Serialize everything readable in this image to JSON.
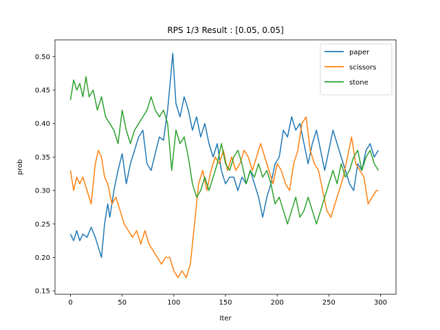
{
  "chart_data": {
    "type": "line",
    "title": "RPS 1/3 Result : [0.05, 0.05]",
    "xlabel": "Iter",
    "ylabel": "prob",
    "xlim": [
      -15,
      315
    ],
    "ylim": [
      0.145,
      0.525
    ],
    "xticks": [
      0,
      50,
      100,
      150,
      200,
      250,
      300
    ],
    "yticks": [
      0.15,
      0.2,
      0.25,
      0.3,
      0.35,
      0.4,
      0.45,
      0.5
    ],
    "ytick_labels": [
      "0.15",
      "0.20",
      "0.25",
      "0.30",
      "0.35",
      "0.40",
      "0.45",
      "0.50"
    ],
    "legend_position": "top-right",
    "grid": false,
    "series": [
      {
        "name": "paper",
        "color": "#1f77b4",
        "points": [
          [
            0,
            0.235
          ],
          [
            3,
            0.225
          ],
          [
            6,
            0.24
          ],
          [
            9,
            0.225
          ],
          [
            12,
            0.235
          ],
          [
            16,
            0.23
          ],
          [
            20,
            0.245
          ],
          [
            24,
            0.23
          ],
          [
            28,
            0.21
          ],
          [
            30,
            0.2
          ],
          [
            33,
            0.25
          ],
          [
            36,
            0.28
          ],
          [
            38,
            0.26
          ],
          [
            42,
            0.3
          ],
          [
            46,
            0.33
          ],
          [
            50,
            0.355
          ],
          [
            54,
            0.31
          ],
          [
            58,
            0.34
          ],
          [
            62,
            0.36
          ],
          [
            66,
            0.38
          ],
          [
            70,
            0.39
          ],
          [
            74,
            0.34
          ],
          [
            78,
            0.33
          ],
          [
            82,
            0.355
          ],
          [
            86,
            0.38
          ],
          [
            90,
            0.375
          ],
          [
            94,
            0.42
          ],
          [
            97,
            0.47
          ],
          [
            99,
            0.505
          ],
          [
            102,
            0.43
          ],
          [
            106,
            0.41
          ],
          [
            110,
            0.44
          ],
          [
            114,
            0.42
          ],
          [
            118,
            0.39
          ],
          [
            122,
            0.41
          ],
          [
            126,
            0.38
          ],
          [
            130,
            0.4
          ],
          [
            134,
            0.37
          ],
          [
            138,
            0.35
          ],
          [
            142,
            0.37
          ],
          [
            146,
            0.33
          ],
          [
            150,
            0.31
          ],
          [
            154,
            0.32
          ],
          [
            158,
            0.32
          ],
          [
            162,
            0.3
          ],
          [
            166,
            0.32
          ],
          [
            170,
            0.31
          ],
          [
            174,
            0.33
          ],
          [
            178,
            0.31
          ],
          [
            182,
            0.29
          ],
          [
            186,
            0.26
          ],
          [
            190,
            0.29
          ],
          [
            194,
            0.31
          ],
          [
            198,
            0.34
          ],
          [
            202,
            0.35
          ],
          [
            206,
            0.39
          ],
          [
            210,
            0.38
          ],
          [
            214,
            0.41
          ],
          [
            218,
            0.39
          ],
          [
            222,
            0.4
          ],
          [
            226,
            0.37
          ],
          [
            230,
            0.34
          ],
          [
            234,
            0.37
          ],
          [
            238,
            0.39
          ],
          [
            242,
            0.36
          ],
          [
            246,
            0.33
          ],
          [
            250,
            0.36
          ],
          [
            254,
            0.39
          ],
          [
            258,
            0.37
          ],
          [
            262,
            0.35
          ],
          [
            266,
            0.33
          ],
          [
            270,
            0.31
          ],
          [
            274,
            0.3
          ],
          [
            278,
            0.34
          ],
          [
            282,
            0.33
          ],
          [
            286,
            0.36
          ],
          [
            290,
            0.37
          ],
          [
            294,
            0.35
          ],
          [
            298,
            0.36
          ]
        ]
      },
      {
        "name": "scissors",
        "color": "#ff7f0e",
        "points": [
          [
            0,
            0.33
          ],
          [
            3,
            0.3
          ],
          [
            6,
            0.32
          ],
          [
            9,
            0.31
          ],
          [
            12,
            0.32
          ],
          [
            16,
            0.3
          ],
          [
            20,
            0.28
          ],
          [
            24,
            0.34
          ],
          [
            27,
            0.36
          ],
          [
            30,
            0.35
          ],
          [
            33,
            0.32
          ],
          [
            36,
            0.31
          ],
          [
            40,
            0.28
          ],
          [
            44,
            0.29
          ],
          [
            48,
            0.27
          ],
          [
            52,
            0.25
          ],
          [
            56,
            0.24
          ],
          [
            60,
            0.23
          ],
          [
            64,
            0.24
          ],
          [
            68,
            0.22
          ],
          [
            72,
            0.24
          ],
          [
            76,
            0.22
          ],
          [
            80,
            0.21
          ],
          [
            84,
            0.2
          ],
          [
            88,
            0.19
          ],
          [
            92,
            0.2
          ],
          [
            96,
            0.2
          ],
          [
            100,
            0.18
          ],
          [
            104,
            0.17
          ],
          [
            108,
            0.18
          ],
          [
            112,
            0.17
          ],
          [
            116,
            0.19
          ],
          [
            120,
            0.25
          ],
          [
            124,
            0.31
          ],
          [
            128,
            0.33
          ],
          [
            132,
            0.3
          ],
          [
            136,
            0.33
          ],
          [
            140,
            0.35
          ],
          [
            144,
            0.34
          ],
          [
            148,
            0.36
          ],
          [
            152,
            0.33
          ],
          [
            156,
            0.35
          ],
          [
            160,
            0.33
          ],
          [
            164,
            0.34
          ],
          [
            168,
            0.36
          ],
          [
            172,
            0.35
          ],
          [
            176,
            0.33
          ],
          [
            180,
            0.35
          ],
          [
            184,
            0.37
          ],
          [
            188,
            0.35
          ],
          [
            192,
            0.33
          ],
          [
            196,
            0.31
          ],
          [
            200,
            0.34
          ],
          [
            204,
            0.33
          ],
          [
            208,
            0.31
          ],
          [
            212,
            0.3
          ],
          [
            216,
            0.34
          ],
          [
            220,
            0.36
          ],
          [
            224,
            0.4
          ],
          [
            228,
            0.41
          ],
          [
            232,
            0.36
          ],
          [
            236,
            0.34
          ],
          [
            240,
            0.33
          ],
          [
            244,
            0.3
          ],
          [
            248,
            0.27
          ],
          [
            252,
            0.26
          ],
          [
            256,
            0.28
          ],
          [
            260,
            0.3
          ],
          [
            264,
            0.32
          ],
          [
            268,
            0.35
          ],
          [
            272,
            0.38
          ],
          [
            276,
            0.34
          ],
          [
            280,
            0.33
          ],
          [
            284,
            0.32
          ],
          [
            288,
            0.28
          ],
          [
            292,
            0.29
          ],
          [
            296,
            0.3
          ],
          [
            298,
            0.3
          ]
        ]
      },
      {
        "name": "stone",
        "color": "#2ca02c",
        "points": [
          [
            0,
            0.435
          ],
          [
            3,
            0.465
          ],
          [
            6,
            0.45
          ],
          [
            9,
            0.46
          ],
          [
            12,
            0.44
          ],
          [
            15,
            0.47
          ],
          [
            18,
            0.44
          ],
          [
            22,
            0.45
          ],
          [
            26,
            0.42
          ],
          [
            30,
            0.44
          ],
          [
            34,
            0.41
          ],
          [
            38,
            0.4
          ],
          [
            42,
            0.39
          ],
          [
            46,
            0.37
          ],
          [
            50,
            0.42
          ],
          [
            54,
            0.39
          ],
          [
            58,
            0.37
          ],
          [
            62,
            0.39
          ],
          [
            66,
            0.4
          ],
          [
            70,
            0.41
          ],
          [
            74,
            0.42
          ],
          [
            78,
            0.44
          ],
          [
            82,
            0.42
          ],
          [
            86,
            0.41
          ],
          [
            90,
            0.42
          ],
          [
            94,
            0.4
          ],
          [
            98,
            0.33
          ],
          [
            102,
            0.39
          ],
          [
            106,
            0.37
          ],
          [
            110,
            0.38
          ],
          [
            114,
            0.35
          ],
          [
            118,
            0.31
          ],
          [
            122,
            0.29
          ],
          [
            126,
            0.3
          ],
          [
            130,
            0.32
          ],
          [
            134,
            0.3
          ],
          [
            138,
            0.32
          ],
          [
            142,
            0.34
          ],
          [
            146,
            0.37
          ],
          [
            150,
            0.34
          ],
          [
            154,
            0.33
          ],
          [
            158,
            0.35
          ],
          [
            162,
            0.36
          ],
          [
            166,
            0.34
          ],
          [
            170,
            0.31
          ],
          [
            174,
            0.33
          ],
          [
            178,
            0.32
          ],
          [
            182,
            0.34
          ],
          [
            186,
            0.32
          ],
          [
            190,
            0.33
          ],
          [
            194,
            0.31
          ],
          [
            198,
            0.28
          ],
          [
            202,
            0.29
          ],
          [
            206,
            0.27
          ],
          [
            210,
            0.25
          ],
          [
            214,
            0.27
          ],
          [
            218,
            0.29
          ],
          [
            222,
            0.26
          ],
          [
            226,
            0.27
          ],
          [
            230,
            0.29
          ],
          [
            234,
            0.27
          ],
          [
            238,
            0.25
          ],
          [
            242,
            0.27
          ],
          [
            246,
            0.29
          ],
          [
            250,
            0.31
          ],
          [
            254,
            0.33
          ],
          [
            258,
            0.31
          ],
          [
            262,
            0.34
          ],
          [
            266,
            0.32
          ],
          [
            270,
            0.33
          ],
          [
            274,
            0.35
          ],
          [
            278,
            0.36
          ],
          [
            282,
            0.33
          ],
          [
            286,
            0.35
          ],
          [
            290,
            0.36
          ],
          [
            294,
            0.34
          ],
          [
            298,
            0.33
          ]
        ]
      }
    ]
  }
}
